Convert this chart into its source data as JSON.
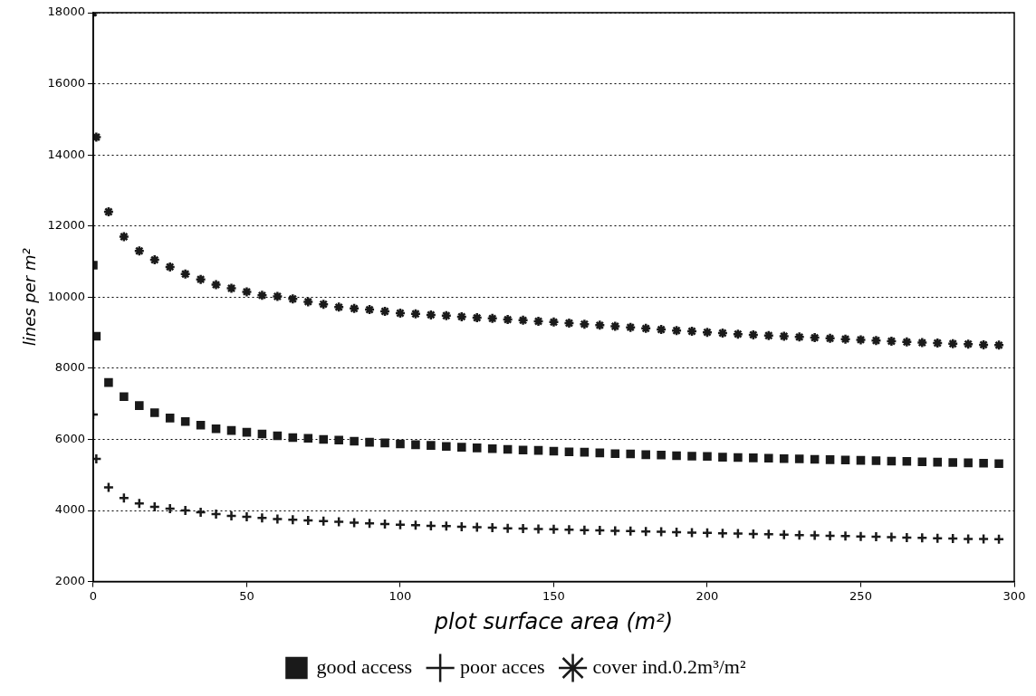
{
  "chart_data": {
    "type": "scatter",
    "xlabel": "plot surface area (m²)",
    "ylabel": "lines per m²",
    "x": [
      0,
      1,
      5,
      10,
      15,
      20,
      25,
      30,
      35,
      40,
      45,
      50,
      55,
      60,
      65,
      70,
      75,
      80,
      85,
      90,
      95,
      100,
      105,
      110,
      115,
      120,
      125,
      130,
      135,
      140,
      145,
      150,
      155,
      160,
      165,
      170,
      175,
      180,
      185,
      190,
      195,
      200,
      205,
      210,
      215,
      220,
      225,
      230,
      235,
      240,
      245,
      250,
      255,
      260,
      265,
      270,
      275,
      280,
      285,
      290,
      295
    ],
    "series": [
      {
        "name": "good access",
        "color": "#1a1a1a",
        "marker": "square",
        "values": [
          10900,
          8900,
          7600,
          7200,
          6950,
          6750,
          6600,
          6500,
          6400,
          6300,
          6250,
          6200,
          6150,
          6100,
          6050,
          6030,
          6000,
          5980,
          5950,
          5920,
          5900,
          5870,
          5850,
          5830,
          5800,
          5780,
          5760,
          5740,
          5720,
          5700,
          5690,
          5670,
          5650,
          5640,
          5620,
          5600,
          5590,
          5570,
          5560,
          5540,
          5530,
          5520,
          5500,
          5490,
          5480,
          5470,
          5460,
          5450,
          5440,
          5430,
          5420,
          5410,
          5400,
          5390,
          5380,
          5370,
          5360,
          5350,
          5340,
          5330,
          5320
        ]
      },
      {
        "name": "poor acces",
        "color": "#1a1a1a",
        "marker": "cross",
        "values": [
          6700,
          5450,
          4650,
          4350,
          4200,
          4100,
          4050,
          4000,
          3950,
          3900,
          3850,
          3820,
          3790,
          3760,
          3740,
          3720,
          3700,
          3680,
          3660,
          3640,
          3620,
          3600,
          3590,
          3570,
          3560,
          3540,
          3530,
          3520,
          3500,
          3490,
          3480,
          3470,
          3460,
          3450,
          3440,
          3430,
          3420,
          3410,
          3400,
          3390,
          3380,
          3370,
          3360,
          3350,
          3340,
          3330,
          3320,
          3310,
          3300,
          3290,
          3280,
          3270,
          3260,
          3250,
          3240,
          3230,
          3220,
          3210,
          3200,
          3200,
          3190
        ]
      },
      {
        "name": "cover ind.0.2m³/m²",
        "color": "#1a1a1a",
        "values": [
          18000,
          14500,
          12400,
          11700,
          11300,
          11050,
          10850,
          10650,
          10500,
          10350,
          10250,
          10150,
          10050,
          10020,
          9950,
          9870,
          9800,
          9720,
          9680,
          9650,
          9600,
          9550,
          9530,
          9500,
          9480,
          9450,
          9420,
          9400,
          9370,
          9350,
          9320,
          9300,
          9270,
          9240,
          9210,
          9180,
          9150,
          9120,
          9090,
          9060,
          9040,
          9010,
          8990,
          8960,
          8940,
          8920,
          8900,
          8880,
          8860,
          8840,
          8820,
          8800,
          8780,
          8760,
          8740,
          8720,
          8710,
          8690,
          8680,
          8660,
          8650
        ]
      }
    ],
    "xlim": [
      0,
      300
    ],
    "xticks": [
      0,
      50,
      100,
      150,
      200,
      250,
      300
    ],
    "ylim": [
      2000,
      18000
    ],
    "yticks": [
      2000,
      4000,
      6000,
      8000,
      10000,
      12000,
      14000,
      16000,
      18000
    ],
    "grid": "y",
    "legend": "bottom"
  }
}
